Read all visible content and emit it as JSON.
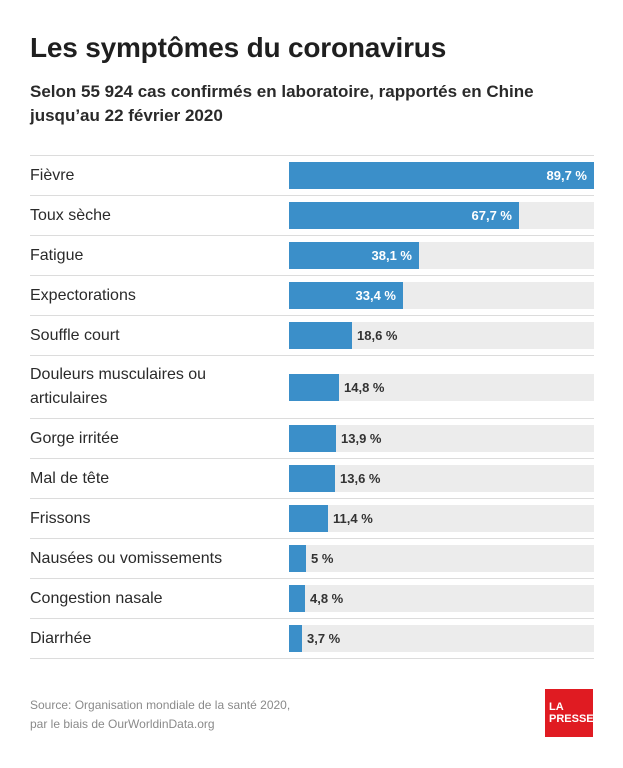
{
  "header": {
    "title": "Les symptômes du coronavirus",
    "subtitle": "Selon 55 924 cas confirmés en laboratoire, rapportés en Chine jusqu’au 22 février 2020"
  },
  "chart_data": {
    "type": "bar",
    "orientation": "horizontal",
    "title": "Les symptômes du coronavirus",
    "subtitle": "Selon 55 924 cas confirmés en laboratoire, rapportés en Chine jusqu’au 22 février 2020",
    "categories": [
      "Fièvre",
      "Toux sèche",
      "Fatigue",
      "Expectorations",
      "Souffle court",
      "Douleurs musculaires ou articulaires",
      "Gorge irritée",
      "Mal de tête",
      "Frissons",
      "Nausées ou vomissements",
      "Congestion nasale",
      "Diarrhée"
    ],
    "values": [
      89.7,
      67.7,
      38.1,
      33.4,
      18.6,
      14.8,
      13.9,
      13.6,
      11.4,
      5,
      4.8,
      3.7
    ],
    "value_labels": [
      "89,7 %",
      "67,7 %",
      "38,1 %",
      "33,4 %",
      "18,6 %",
      "14,8 %",
      "13,9 %",
      "13,6 %",
      "11,4 %",
      "5 %",
      "4,8 %",
      "3,7 %"
    ],
    "xlim": [
      0,
      89.7
    ],
    "bar_color": "#3b8fc9",
    "track_color": "#ececec",
    "grid": false,
    "legend": "none"
  },
  "footer": {
    "source_line1": "Source: Organisation mondiale de la santé 2020,",
    "source_line2": "par le biais de OurWorldinData.org",
    "logo_line1": "LA",
    "logo_line2": "PRESSE",
    "logo_color": "#e01b22"
  }
}
